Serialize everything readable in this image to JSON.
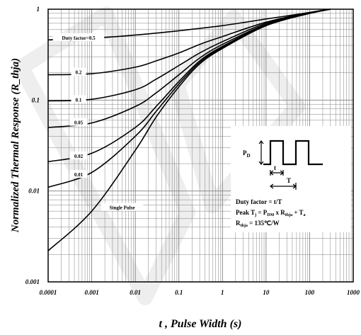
{
  "chart_data": {
    "type": "line",
    "title": "",
    "xlabel": "t , Pulse Width (s)",
    "ylabel": "Normalized Thermal Response (R_thja)",
    "x_scale": "log",
    "y_scale": "log",
    "xlim": [
      0.0001,
      1000
    ],
    "ylim": [
      0.001,
      1
    ],
    "grid": true,
    "x_ticks": [
      "0.0001",
      "0.001",
      "0.01",
      "0.1",
      "1",
      "10",
      "100",
      "1000"
    ],
    "y_ticks": [
      "0.001",
      "0.01",
      "0.1",
      "1"
    ],
    "series": [
      {
        "name": "Duty factor=0.5",
        "x": [
          0.0001,
          0.001,
          0.01,
          0.1,
          1,
          10,
          100,
          300
        ],
        "y": [
          0.46,
          0.48,
          0.52,
          0.58,
          0.66,
          0.78,
          0.92,
          1.0
        ]
      },
      {
        "name": "0.2",
        "x": [
          0.0001,
          0.001,
          0.01,
          0.03,
          0.1,
          0.3,
          1,
          10,
          100,
          300
        ],
        "y": [
          0.19,
          0.195,
          0.23,
          0.27,
          0.33,
          0.41,
          0.5,
          0.72,
          0.92,
          1.0
        ]
      },
      {
        "name": "0.1",
        "x": [
          0.0001,
          0.001,
          0.01,
          0.03,
          0.1,
          0.3,
          1,
          10,
          100,
          300
        ],
        "y": [
          0.098,
          0.102,
          0.13,
          0.17,
          0.24,
          0.33,
          0.44,
          0.7,
          0.91,
          1.0
        ]
      },
      {
        "name": "0.05",
        "x": [
          0.0001,
          0.001,
          0.01,
          0.03,
          0.1,
          0.3,
          1,
          10,
          100,
          300
        ],
        "y": [
          0.05,
          0.056,
          0.085,
          0.12,
          0.19,
          0.29,
          0.41,
          0.68,
          0.9,
          1.0
        ]
      },
      {
        "name": "0.02",
        "x": [
          0.0001,
          0.001,
          0.01,
          0.03,
          0.1,
          0.3,
          1,
          10,
          100,
          300
        ],
        "y": [
          0.021,
          0.026,
          0.05,
          0.085,
          0.16,
          0.27,
          0.39,
          0.67,
          0.9,
          1.0
        ]
      },
      {
        "name": "0.01",
        "x": [
          0.0001,
          0.001,
          0.01,
          0.03,
          0.1,
          0.3,
          1,
          10,
          100,
          300
        ],
        "y": [
          0.011,
          0.016,
          0.04,
          0.075,
          0.15,
          0.26,
          0.38,
          0.66,
          0.9,
          1.0
        ]
      },
      {
        "name": "Single Pulse",
        "x": [
          0.0001,
          0.001,
          0.01,
          0.03,
          0.1,
          0.3,
          1,
          10,
          100,
          300
        ],
        "y": [
          0.0022,
          0.006,
          0.028,
          0.065,
          0.14,
          0.25,
          0.37,
          0.66,
          0.9,
          1.0
        ]
      }
    ],
    "curve_label_positions": {
      "Duty factor=0.5": [
        0.0005,
        0.48
      ],
      "0.2": [
        0.0005,
        0.2
      ],
      "0.1": [
        0.0005,
        0.1
      ],
      "0.05": [
        0.0005,
        0.056
      ],
      "0.02": [
        0.0005,
        0.024
      ],
      "0.01": [
        0.0005,
        0.015
      ],
      "Single Pulse": [
        0.005,
        0.0065
      ]
    },
    "annotation": {
      "pd": "P",
      "pd_sub": "D",
      "t": "t",
      "T": "T",
      "duty": "Duty factor = t/T",
      "peak_a": "Peak T",
      "peak_b": "j",
      "peak_c": " = P",
      "peak_d": "DM",
      "peak_e": " x R",
      "peak_f": "thja",
      "peak_g": " + T",
      "peak_h": "a",
      "rth_a": "R",
      "rth_b": "thja",
      "rth_c": " = 135℃/W"
    },
    "colors": {
      "line": "#000000",
      "grid": "#808080",
      "watermark": "#d9d9d9"
    }
  }
}
